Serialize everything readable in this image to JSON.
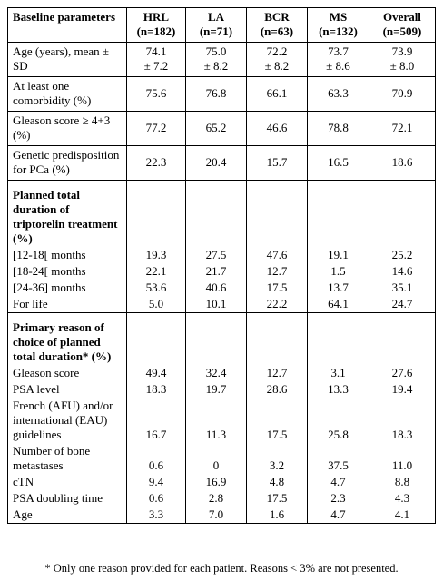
{
  "header": {
    "label": "Baseline parameters",
    "columns": [
      {
        "name": "HRL",
        "n": "(n=182)"
      },
      {
        "name": "LA",
        "n": "(n=71)"
      },
      {
        "name": "BCR",
        "n": "(n=63)"
      },
      {
        "name": "MS",
        "n": "(n=132)"
      },
      {
        "name": "Overall",
        "n": "(n=509)"
      }
    ]
  },
  "rows": [
    {
      "label": "Age (years), mean ± SD",
      "values": [
        [
          "74.1",
          "± 7.2"
        ],
        [
          "75.0",
          "± 8.2"
        ],
        [
          "72.2",
          "± 8.2"
        ],
        [
          "73.7",
          "± 8.6"
        ],
        [
          "73.9",
          "± 8.0"
        ]
      ]
    },
    {
      "label": "At least one comorbidity (%)",
      "values": [
        [
          "75.6"
        ],
        [
          "76.8"
        ],
        [
          "66.1"
        ],
        [
          "63.3"
        ],
        [
          "70.9"
        ]
      ]
    },
    {
      "label": "Gleason score ≥ 4+3 (%)",
      "values": [
        [
          "77.2"
        ],
        [
          "65.2"
        ],
        [
          "46.6"
        ],
        [
          "78.8"
        ],
        [
          "72.1"
        ]
      ]
    },
    {
      "label": "Genetic predisposition for PCa (%)",
      "values": [
        [
          "22.3"
        ],
        [
          "20.4"
        ],
        [
          "15.7"
        ],
        [
          "16.5"
        ],
        [
          "18.6"
        ]
      ]
    }
  ],
  "sections": [
    {
      "title": "Planned total duration of triptorelin treatment (%)",
      "rows": [
        {
          "label": "[12-18[ months",
          "values": [
            "19.3",
            "27.5",
            "47.6",
            "19.1",
            "25.2"
          ]
        },
        {
          "label": "[18-24[ months",
          "values": [
            "22.1",
            "21.7",
            "12.7",
            "1.5",
            "14.6"
          ]
        },
        {
          "label": "[24-36] months",
          "values": [
            "53.6",
            "40.6",
            "17.5",
            "13.7",
            "35.1"
          ]
        },
        {
          "label": "For life",
          "values": [
            "5.0",
            "10.1",
            "22.2",
            "64.1",
            "24.7"
          ]
        }
      ]
    },
    {
      "title": "Primary reason of choice of planned total duration* (%)",
      "rows": [
        {
          "label": "Gleason score",
          "values": [
            "49.4",
            "32.4",
            "12.7",
            "3.1",
            "27.6"
          ]
        },
        {
          "label": "PSA level",
          "values": [
            "18.3",
            "19.7",
            "28.6",
            "13.3",
            "19.4"
          ]
        },
        {
          "label": "French (AFU) and/or international (EAU) guidelines",
          "values": [
            "16.7",
            "11.3",
            "17.5",
            "25.8",
            "18.3"
          ]
        },
        {
          "label": "Number of bone metastases",
          "values": [
            "0.6",
            "0",
            "3.2",
            "37.5",
            "11.0"
          ]
        },
        {
          "label": "cTN",
          "values": [
            "9.4",
            "16.9",
            "4.8",
            "4.7",
            "8.8"
          ]
        },
        {
          "label": "PSA doubling time",
          "values": [
            "0.6",
            "2.8",
            "17.5",
            "2.3",
            "4.3"
          ]
        },
        {
          "label": "Age",
          "values": [
            "3.3",
            "7.0",
            "1.6",
            "4.7",
            "4.1"
          ]
        }
      ]
    }
  ],
  "footnote": "* Only one reason provided for each patient. Reasons < 3% are not presented."
}
